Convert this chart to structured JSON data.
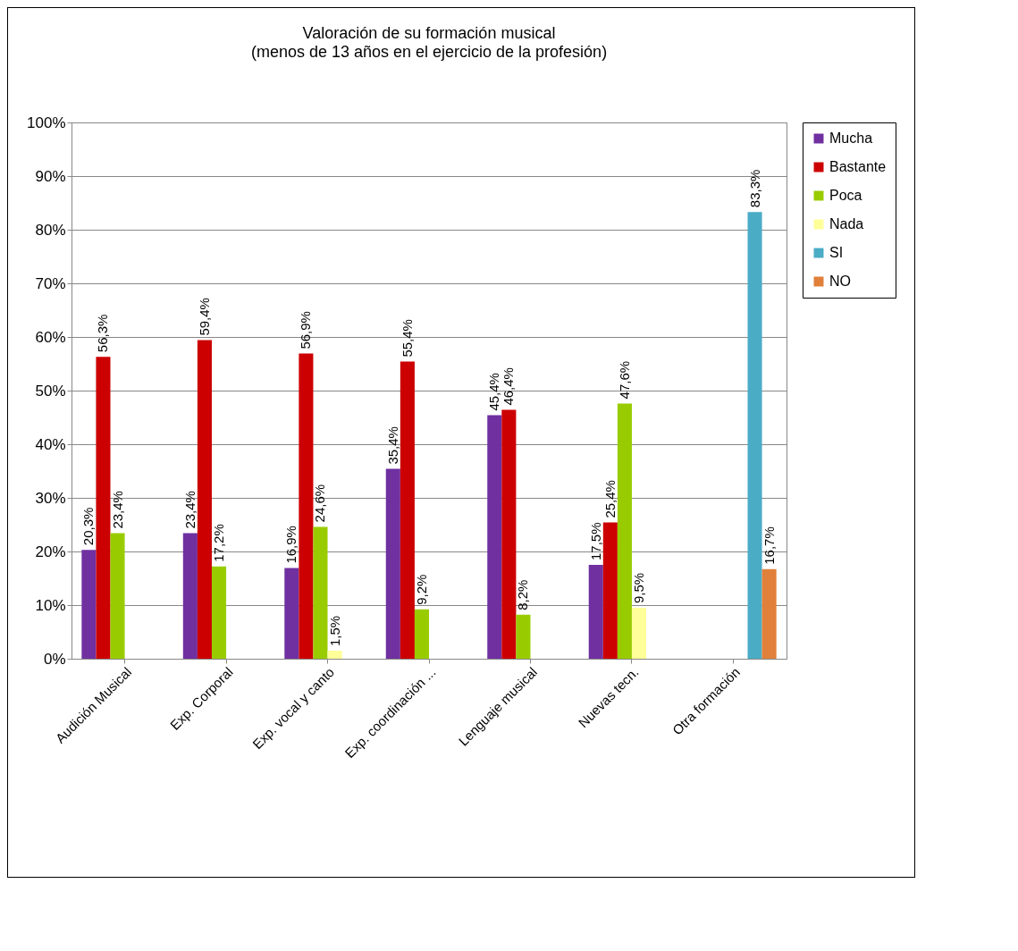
{
  "chart_data": {
    "type": "bar",
    "title": "Valoración de su formación musical",
    "subtitle": "(menos de 13 años en el ejercicio de la profesión)",
    "categories": [
      "Audición Musical",
      "Exp. Corporal",
      "Exp. vocal y canto",
      "Exp. coordinación ...",
      "Lenguaje musical",
      "Nuevas tecn.",
      "Otra formación"
    ],
    "series": [
      {
        "name": "Mucha",
        "color": "#7030a0",
        "values": [
          20.3,
          23.4,
          16.9,
          35.4,
          45.4,
          17.5,
          null
        ],
        "value_labels": [
          "20,3%",
          "23,4%",
          "16,9%",
          "35,4%",
          "45,4%",
          "17,5%",
          null
        ]
      },
      {
        "name": "Bastante",
        "color": "#cc0000",
        "values": [
          56.3,
          59.4,
          56.9,
          55.4,
          46.4,
          25.4,
          null
        ],
        "value_labels": [
          "56,3%",
          "59,4%",
          "56,9%",
          "55,4%",
          "46,4%",
          "25,4%",
          null
        ]
      },
      {
        "name": "Poca",
        "color": "#99cc00",
        "values": [
          23.4,
          17.2,
          24.6,
          9.2,
          8.2,
          47.6,
          null
        ],
        "value_labels": [
          "23,4%",
          "17,2%",
          "24,6%",
          "9,2%",
          "8,2%",
          "47,6%",
          null
        ]
      },
      {
        "name": "Nada",
        "color": "#ffff99",
        "values": [
          null,
          null,
          1.5,
          null,
          null,
          9.5,
          null
        ],
        "value_labels": [
          null,
          null,
          "1,5%",
          null,
          null,
          "9,5%",
          null
        ]
      },
      {
        "name": "SI",
        "color": "#4bacc6",
        "values": [
          null,
          null,
          null,
          null,
          null,
          null,
          83.3
        ],
        "value_labels": [
          null,
          null,
          null,
          null,
          null,
          null,
          "83,3%"
        ]
      },
      {
        "name": "NO",
        "color": "#e0803a",
        "values": [
          null,
          null,
          null,
          null,
          null,
          null,
          16.7
        ],
        "value_labels": [
          null,
          null,
          null,
          null,
          null,
          null,
          "16,7%"
        ]
      }
    ],
    "ylim": [
      0,
      100
    ],
    "yticks": [
      {
        "value": 0,
        "label": "0%"
      },
      {
        "value": 10,
        "label": "10%"
      },
      {
        "value": 20,
        "label": "20%"
      },
      {
        "value": 30,
        "label": "30%"
      },
      {
        "value": 40,
        "label": "40%"
      },
      {
        "value": 50,
        "label": "50%"
      },
      {
        "value": 60,
        "label": "60%"
      },
      {
        "value": 70,
        "label": "70%"
      },
      {
        "value": 80,
        "label": "80%"
      },
      {
        "value": 90,
        "label": "90%"
      },
      {
        "value": 100,
        "label": "100%"
      }
    ],
    "grid": "y",
    "legend": "right"
  }
}
